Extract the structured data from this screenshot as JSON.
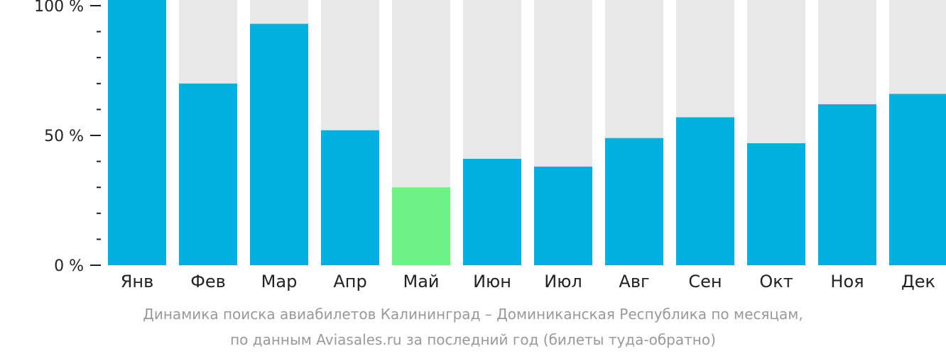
{
  "chart_data": {
    "type": "bar",
    "categories": [
      "Янв",
      "Фев",
      "Мар",
      "Апр",
      "Май",
      "Июн",
      "Июл",
      "Авг",
      "Сен",
      "Окт",
      "Ноя",
      "Дек"
    ],
    "values": [
      100,
      70,
      93,
      52,
      30,
      41,
      38,
      49,
      57,
      47,
      62,
      66
    ],
    "ylim": [
      0,
      100
    ],
    "yticks": [
      {
        "value": 0,
        "label": "0 %"
      },
      {
        "value": 50,
        "label": "50 %"
      },
      {
        "value": 100,
        "label": "100 %"
      }
    ],
    "minor_tick_step": 10,
    "highlight_index": 4,
    "colors": {
      "bar": "#00b0dd",
      "highlight": "#6ef286",
      "background_bar": "#e8e8e8",
      "axis": "#222222",
      "label": "#222222"
    },
    "grid": false,
    "legend": "none"
  },
  "caption": {
    "line1": "Динамика поиска авиабилетов Калининград – Доминиканская Республика по месяцам,",
    "line2": "по данным Aviasales.ru за последний год (билеты туда-обратно)"
  }
}
